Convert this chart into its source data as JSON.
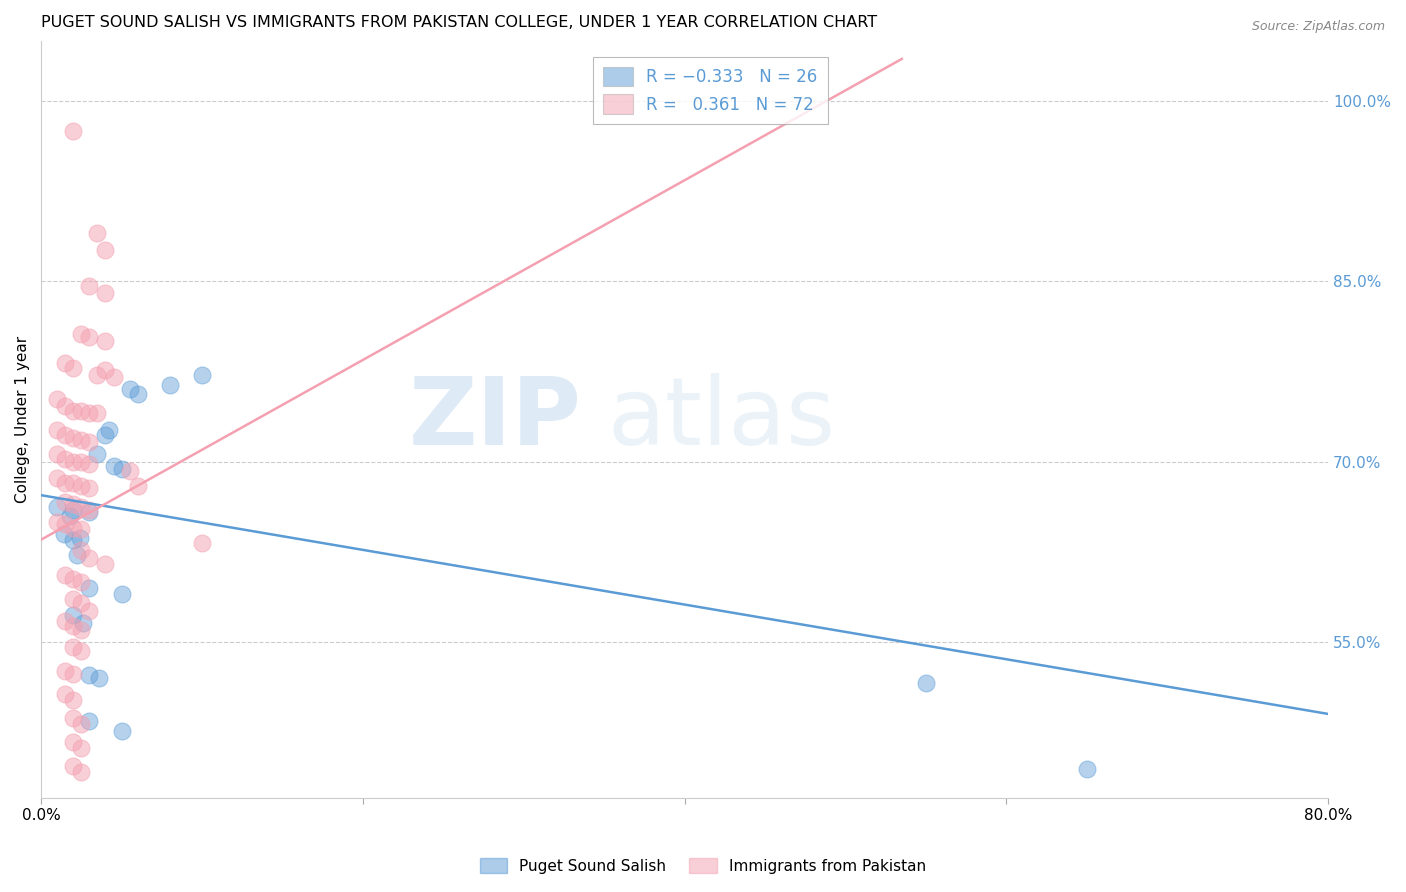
{
  "title": "PUGET SOUND SALISH VS IMMIGRANTS FROM PAKISTAN COLLEGE, UNDER 1 YEAR CORRELATION CHART",
  "source": "Source: ZipAtlas.com",
  "ylabel_label": "College, Under 1 year",
  "right_yticks": [
    1.0,
    0.85,
    0.7,
    0.55
  ],
  "right_ytick_labels": [
    "100.0%",
    "85.0%",
    "70.0%",
    "55.0%"
  ],
  "xlim": [
    0.0,
    0.8
  ],
  "ylim": [
    0.42,
    1.05
  ],
  "watermark_zip": "ZIP",
  "watermark_atlas": "atlas",
  "blue_color": "#5B9BD5",
  "pink_color": "#F4A0B0",
  "blue_scatter": [
    [
      0.018,
      0.655
    ],
    [
      0.02,
      0.635
    ],
    [
      0.022,
      0.622
    ],
    [
      0.014,
      0.64
    ],
    [
      0.024,
      0.636
    ],
    [
      0.01,
      0.662
    ],
    [
      0.02,
      0.66
    ],
    [
      0.03,
      0.658
    ],
    [
      0.04,
      0.722
    ],
    [
      0.042,
      0.726
    ],
    [
      0.055,
      0.76
    ],
    [
      0.06,
      0.756
    ],
    [
      0.08,
      0.764
    ],
    [
      0.1,
      0.772
    ],
    [
      0.035,
      0.706
    ],
    [
      0.045,
      0.696
    ],
    [
      0.05,
      0.694
    ],
    [
      0.02,
      0.572
    ],
    [
      0.026,
      0.566
    ],
    [
      0.03,
      0.595
    ],
    [
      0.05,
      0.59
    ],
    [
      0.03,
      0.522
    ],
    [
      0.036,
      0.52
    ],
    [
      0.03,
      0.484
    ],
    [
      0.05,
      0.476
    ],
    [
      0.55,
      0.516
    ],
    [
      0.65,
      0.444
    ]
  ],
  "pink_scatter": [
    [
      0.02,
      0.975
    ],
    [
      0.035,
      0.89
    ],
    [
      0.04,
      0.876
    ],
    [
      0.03,
      0.846
    ],
    [
      0.04,
      0.84
    ],
    [
      0.025,
      0.806
    ],
    [
      0.03,
      0.804
    ],
    [
      0.04,
      0.8
    ],
    [
      0.015,
      0.782
    ],
    [
      0.02,
      0.778
    ],
    [
      0.035,
      0.772
    ],
    [
      0.04,
      0.776
    ],
    [
      0.045,
      0.77
    ],
    [
      0.01,
      0.752
    ],
    [
      0.015,
      0.746
    ],
    [
      0.02,
      0.742
    ],
    [
      0.025,
      0.742
    ],
    [
      0.03,
      0.74
    ],
    [
      0.035,
      0.74
    ],
    [
      0.01,
      0.726
    ],
    [
      0.015,
      0.722
    ],
    [
      0.02,
      0.72
    ],
    [
      0.025,
      0.718
    ],
    [
      0.03,
      0.716
    ],
    [
      0.01,
      0.706
    ],
    [
      0.015,
      0.702
    ],
    [
      0.02,
      0.7
    ],
    [
      0.025,
      0.7
    ],
    [
      0.03,
      0.698
    ],
    [
      0.01,
      0.686
    ],
    [
      0.015,
      0.682
    ],
    [
      0.02,
      0.682
    ],
    [
      0.025,
      0.68
    ],
    [
      0.03,
      0.678
    ],
    [
      0.015,
      0.666
    ],
    [
      0.02,
      0.665
    ],
    [
      0.025,
      0.662
    ],
    [
      0.03,
      0.66
    ],
    [
      0.01,
      0.65
    ],
    [
      0.015,
      0.648
    ],
    [
      0.02,
      0.645
    ],
    [
      0.025,
      0.644
    ],
    [
      0.055,
      0.692
    ],
    [
      0.06,
      0.68
    ],
    [
      0.1,
      0.632
    ],
    [
      0.025,
      0.626
    ],
    [
      0.03,
      0.62
    ],
    [
      0.04,
      0.615
    ],
    [
      0.015,
      0.606
    ],
    [
      0.02,
      0.602
    ],
    [
      0.025,
      0.6
    ],
    [
      0.02,
      0.586
    ],
    [
      0.025,
      0.582
    ],
    [
      0.03,
      0.576
    ],
    [
      0.015,
      0.567
    ],
    [
      0.02,
      0.563
    ],
    [
      0.025,
      0.56
    ],
    [
      0.02,
      0.546
    ],
    [
      0.025,
      0.542
    ],
    [
      0.015,
      0.526
    ],
    [
      0.02,
      0.523
    ],
    [
      0.015,
      0.507
    ],
    [
      0.02,
      0.502
    ],
    [
      0.02,
      0.487
    ],
    [
      0.025,
      0.482
    ],
    [
      0.02,
      0.467
    ],
    [
      0.025,
      0.462
    ],
    [
      0.02,
      0.447
    ],
    [
      0.025,
      0.442
    ]
  ],
  "blue_line": {
    "x0": 0.0,
    "y0": 0.672,
    "x1": 0.8,
    "y1": 0.49
  },
  "pink_line": {
    "x0": 0.0,
    "y0": 0.635,
    "x1": 0.535,
    "y1": 1.035
  }
}
